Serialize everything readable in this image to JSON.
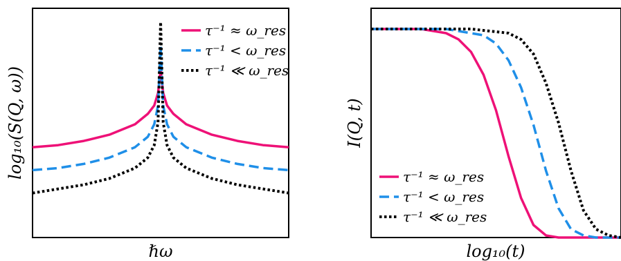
{
  "colors": {
    "magenta": "#ee1177",
    "blue": "#1f8fe8",
    "black": "#000000"
  },
  "chart_data": [
    {
      "type": "line",
      "xlabel": "ℏω",
      "ylabel": "log₁₀(S(Q, ω))",
      "xlim": [
        -1,
        1
      ],
      "ylim": [
        0,
        1
      ],
      "legend_position": "top-right",
      "grid": false,
      "series": [
        {
          "name": "τ⁻¹ ≈ ω_res",
          "color": "#ee1177",
          "dash": "solid",
          "x": [
            -1.0,
            -0.8,
            -0.6,
            -0.4,
            -0.2,
            -0.1,
            -0.05,
            -0.02,
            0.0,
            0.02,
            0.05,
            0.1,
            0.2,
            0.4,
            0.6,
            0.8,
            1.0
          ],
          "y": [
            0.4,
            0.41,
            0.43,
            0.46,
            0.51,
            0.56,
            0.6,
            0.66,
            0.77,
            0.66,
            0.6,
            0.56,
            0.51,
            0.46,
            0.43,
            0.41,
            0.4
          ]
        },
        {
          "name": "τ⁻¹ < ω_res",
          "color": "#1f8fe8",
          "dash": "dashed",
          "x": [
            -1.0,
            -0.8,
            -0.6,
            -0.4,
            -0.2,
            -0.1,
            -0.05,
            -0.02,
            0.0,
            0.02,
            0.05,
            0.1,
            0.2,
            0.4,
            0.6,
            0.8,
            1.0
          ],
          "y": [
            0.29,
            0.3,
            0.32,
            0.35,
            0.4,
            0.45,
            0.51,
            0.6,
            0.89,
            0.6,
            0.51,
            0.45,
            0.4,
            0.35,
            0.32,
            0.3,
            0.29
          ]
        },
        {
          "name": "τ⁻¹ ≪ ω_res",
          "color": "#000000",
          "dash": "dotted",
          "x": [
            -1.0,
            -0.8,
            -0.6,
            -0.4,
            -0.2,
            -0.1,
            -0.05,
            -0.02,
            0.0,
            0.02,
            0.05,
            0.1,
            0.2,
            0.4,
            0.6,
            0.8,
            1.0
          ],
          "y": [
            0.18,
            0.2,
            0.22,
            0.25,
            0.3,
            0.35,
            0.41,
            0.52,
            1.0,
            0.52,
            0.41,
            0.35,
            0.3,
            0.25,
            0.22,
            0.2,
            0.18
          ]
        }
      ]
    },
    {
      "type": "line",
      "xlabel": "log₁₀(t)",
      "ylabel": "I(Q, t)",
      "xlim": [
        0,
        1
      ],
      "ylim": [
        0,
        1
      ],
      "legend_position": "bottom-left",
      "grid": false,
      "series": [
        {
          "name": "τ⁻¹ ≈ ω_res",
          "color": "#ee1177",
          "dash": "solid",
          "x": [
            0.0,
            0.2,
            0.3,
            0.35,
            0.4,
            0.45,
            0.5,
            0.55,
            0.6,
            0.65,
            0.7,
            0.75,
            0.8,
            1.0
          ],
          "y": [
            1.0,
            1.0,
            0.98,
            0.95,
            0.89,
            0.78,
            0.61,
            0.39,
            0.19,
            0.06,
            0.01,
            0.0,
            0.0,
            0.0
          ]
        },
        {
          "name": "τ⁻¹ < ω_res",
          "color": "#1f8fe8",
          "dash": "dashed",
          "x": [
            0.0,
            0.3,
            0.45,
            0.5,
            0.55,
            0.6,
            0.65,
            0.7,
            0.75,
            0.8,
            0.85,
            0.9,
            1.0
          ],
          "y": [
            1.0,
            1.0,
            0.97,
            0.93,
            0.85,
            0.72,
            0.54,
            0.32,
            0.14,
            0.04,
            0.01,
            0.0,
            0.0
          ]
        },
        {
          "name": "τ⁻¹ ≪ ω_res",
          "color": "#000000",
          "dash": "dotted",
          "x": [
            0.0,
            0.4,
            0.55,
            0.6,
            0.65,
            0.7,
            0.75,
            0.8,
            0.85,
            0.9,
            0.95,
            1.0
          ],
          "y": [
            1.0,
            1.0,
            0.98,
            0.95,
            0.88,
            0.74,
            0.55,
            0.32,
            0.13,
            0.04,
            0.01,
            0.0
          ]
        }
      ]
    }
  ]
}
